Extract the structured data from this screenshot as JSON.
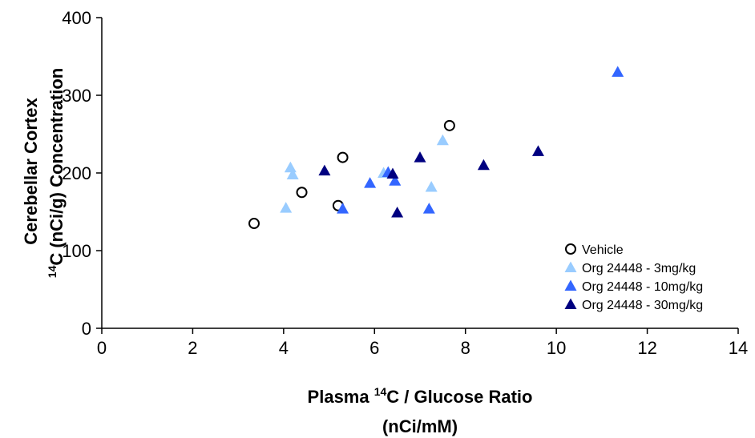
{
  "chart_data": {
    "type": "scatter",
    "title": "",
    "xlabel": {
      "line1_pre": "Plasma ",
      "line1_sup": "14",
      "line1_post": "C / Glucose Ratio",
      "line2": "(nCi/mM)"
    },
    "ylabel": {
      "line1": "Cerebellar Cortex",
      "line2_sup": "14",
      "line2_post": "C (nCi/g) Concentration"
    },
    "xlim": [
      0,
      14
    ],
    "ylim": [
      0,
      400
    ],
    "xticks": [
      0,
      2,
      4,
      6,
      8,
      10,
      12,
      14
    ],
    "yticks": [
      0,
      100,
      200,
      300,
      400
    ],
    "xtick_labels": [
      "0",
      "2",
      "4",
      "6",
      "8",
      "10",
      "12",
      "14"
    ],
    "ytick_labels": [
      "0",
      "100",
      "200",
      "300",
      "400"
    ],
    "grid": false,
    "legend_position": "bottom-right",
    "series": [
      {
        "name": "Vehicle",
        "marker": "circle-open",
        "color": "#000000",
        "points": [
          [
            3.35,
            135
          ],
          [
            4.4,
            175
          ],
          [
            5.2,
            158
          ],
          [
            5.3,
            220
          ],
          [
            7.65,
            261
          ]
        ]
      },
      {
        "name": "Org 24448 - 3mg/kg",
        "marker": "triangle",
        "color": "#99ccff",
        "points": [
          [
            4.05,
            155
          ],
          [
            4.15,
            207
          ],
          [
            4.2,
            198
          ],
          [
            6.2,
            200
          ],
          [
            7.25,
            182
          ],
          [
            7.5,
            242
          ]
        ]
      },
      {
        "name": "Org 24448 - 10mg/kg",
        "marker": "triangle",
        "color": "#3366ff",
        "points": [
          [
            5.3,
            154
          ],
          [
            5.9,
            187
          ],
          [
            6.3,
            201
          ],
          [
            6.45,
            190
          ],
          [
            7.2,
            154
          ],
          [
            11.35,
            330
          ]
        ]
      },
      {
        "name": "Org 24448 - 30mg/kg",
        "marker": "triangle",
        "color": "#000080",
        "points": [
          [
            4.9,
            203
          ],
          [
            6.4,
            199
          ],
          [
            6.5,
            149
          ],
          [
            7.0,
            220
          ],
          [
            8.4,
            210
          ],
          [
            9.6,
            228
          ]
        ]
      }
    ]
  }
}
